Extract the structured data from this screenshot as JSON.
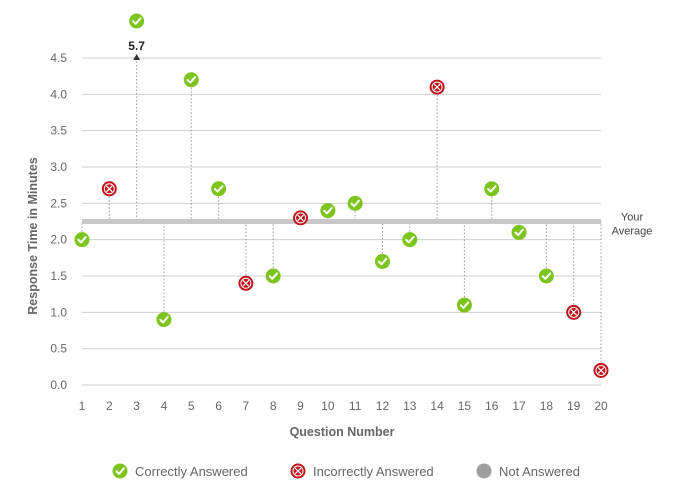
{
  "chart_data": {
    "type": "scatter",
    "title": "",
    "xlabel": "Question Number",
    "ylabel": "Response Time in Minutes",
    "x_ticks": [
      "1",
      "2",
      "3",
      "4",
      "5",
      "6",
      "7",
      "8",
      "9",
      "10",
      "11",
      "12",
      "13",
      "14",
      "15",
      "16",
      "17",
      "18",
      "19",
      "20"
    ],
    "y_ticks": [
      "0.0",
      "0.5",
      "1.0",
      "1.5",
      "2.0",
      "2.5",
      "3.0",
      "3.5",
      "4.0",
      "4.5"
    ],
    "ylim": [
      0,
      4.5
    ],
    "grid": "horizontal",
    "average": {
      "value": 2.25,
      "label_line1": "Your",
      "label_line2": "Average"
    },
    "overflow_label": "5.7",
    "points": [
      {
        "question": 1,
        "minutes": 2.0,
        "status": "correct"
      },
      {
        "question": 2,
        "minutes": 2.7,
        "status": "incorrect"
      },
      {
        "question": 3,
        "minutes": 5.7,
        "status": "correct"
      },
      {
        "question": 4,
        "minutes": 0.9,
        "status": "correct"
      },
      {
        "question": 5,
        "minutes": 4.2,
        "status": "correct"
      },
      {
        "question": 6,
        "minutes": 2.7,
        "status": "correct"
      },
      {
        "question": 7,
        "minutes": 1.4,
        "status": "incorrect"
      },
      {
        "question": 8,
        "minutes": 1.5,
        "status": "correct"
      },
      {
        "question": 9,
        "minutes": 2.3,
        "status": "incorrect"
      },
      {
        "question": 10,
        "minutes": 2.4,
        "status": "correct"
      },
      {
        "question": 11,
        "minutes": 2.5,
        "status": "correct"
      },
      {
        "question": 12,
        "minutes": 1.7,
        "status": "correct"
      },
      {
        "question": 13,
        "minutes": 2.0,
        "status": "correct"
      },
      {
        "question": 14,
        "minutes": 4.1,
        "status": "incorrect"
      },
      {
        "question": 15,
        "minutes": 1.1,
        "status": "correct"
      },
      {
        "question": 16,
        "minutes": 2.7,
        "status": "correct"
      },
      {
        "question": 17,
        "minutes": 2.1,
        "status": "correct"
      },
      {
        "question": 18,
        "minutes": 1.5,
        "status": "correct"
      },
      {
        "question": 19,
        "minutes": 1.0,
        "status": "incorrect"
      },
      {
        "question": 20,
        "minutes": 0.2,
        "status": "incorrect"
      }
    ],
    "legend": [
      {
        "key": "correct",
        "label": "Correctly Answered"
      },
      {
        "key": "incorrect",
        "label": "Incorrectly Answered"
      },
      {
        "key": "not_answered",
        "label": "Not Answered"
      }
    ],
    "colors": {
      "correct": "#7ec41f",
      "incorrect": "#c0131b",
      "not_answered": "#9e9e9e",
      "average_line": "#c8c8c8",
      "grid": "#cfcfcf"
    }
  }
}
